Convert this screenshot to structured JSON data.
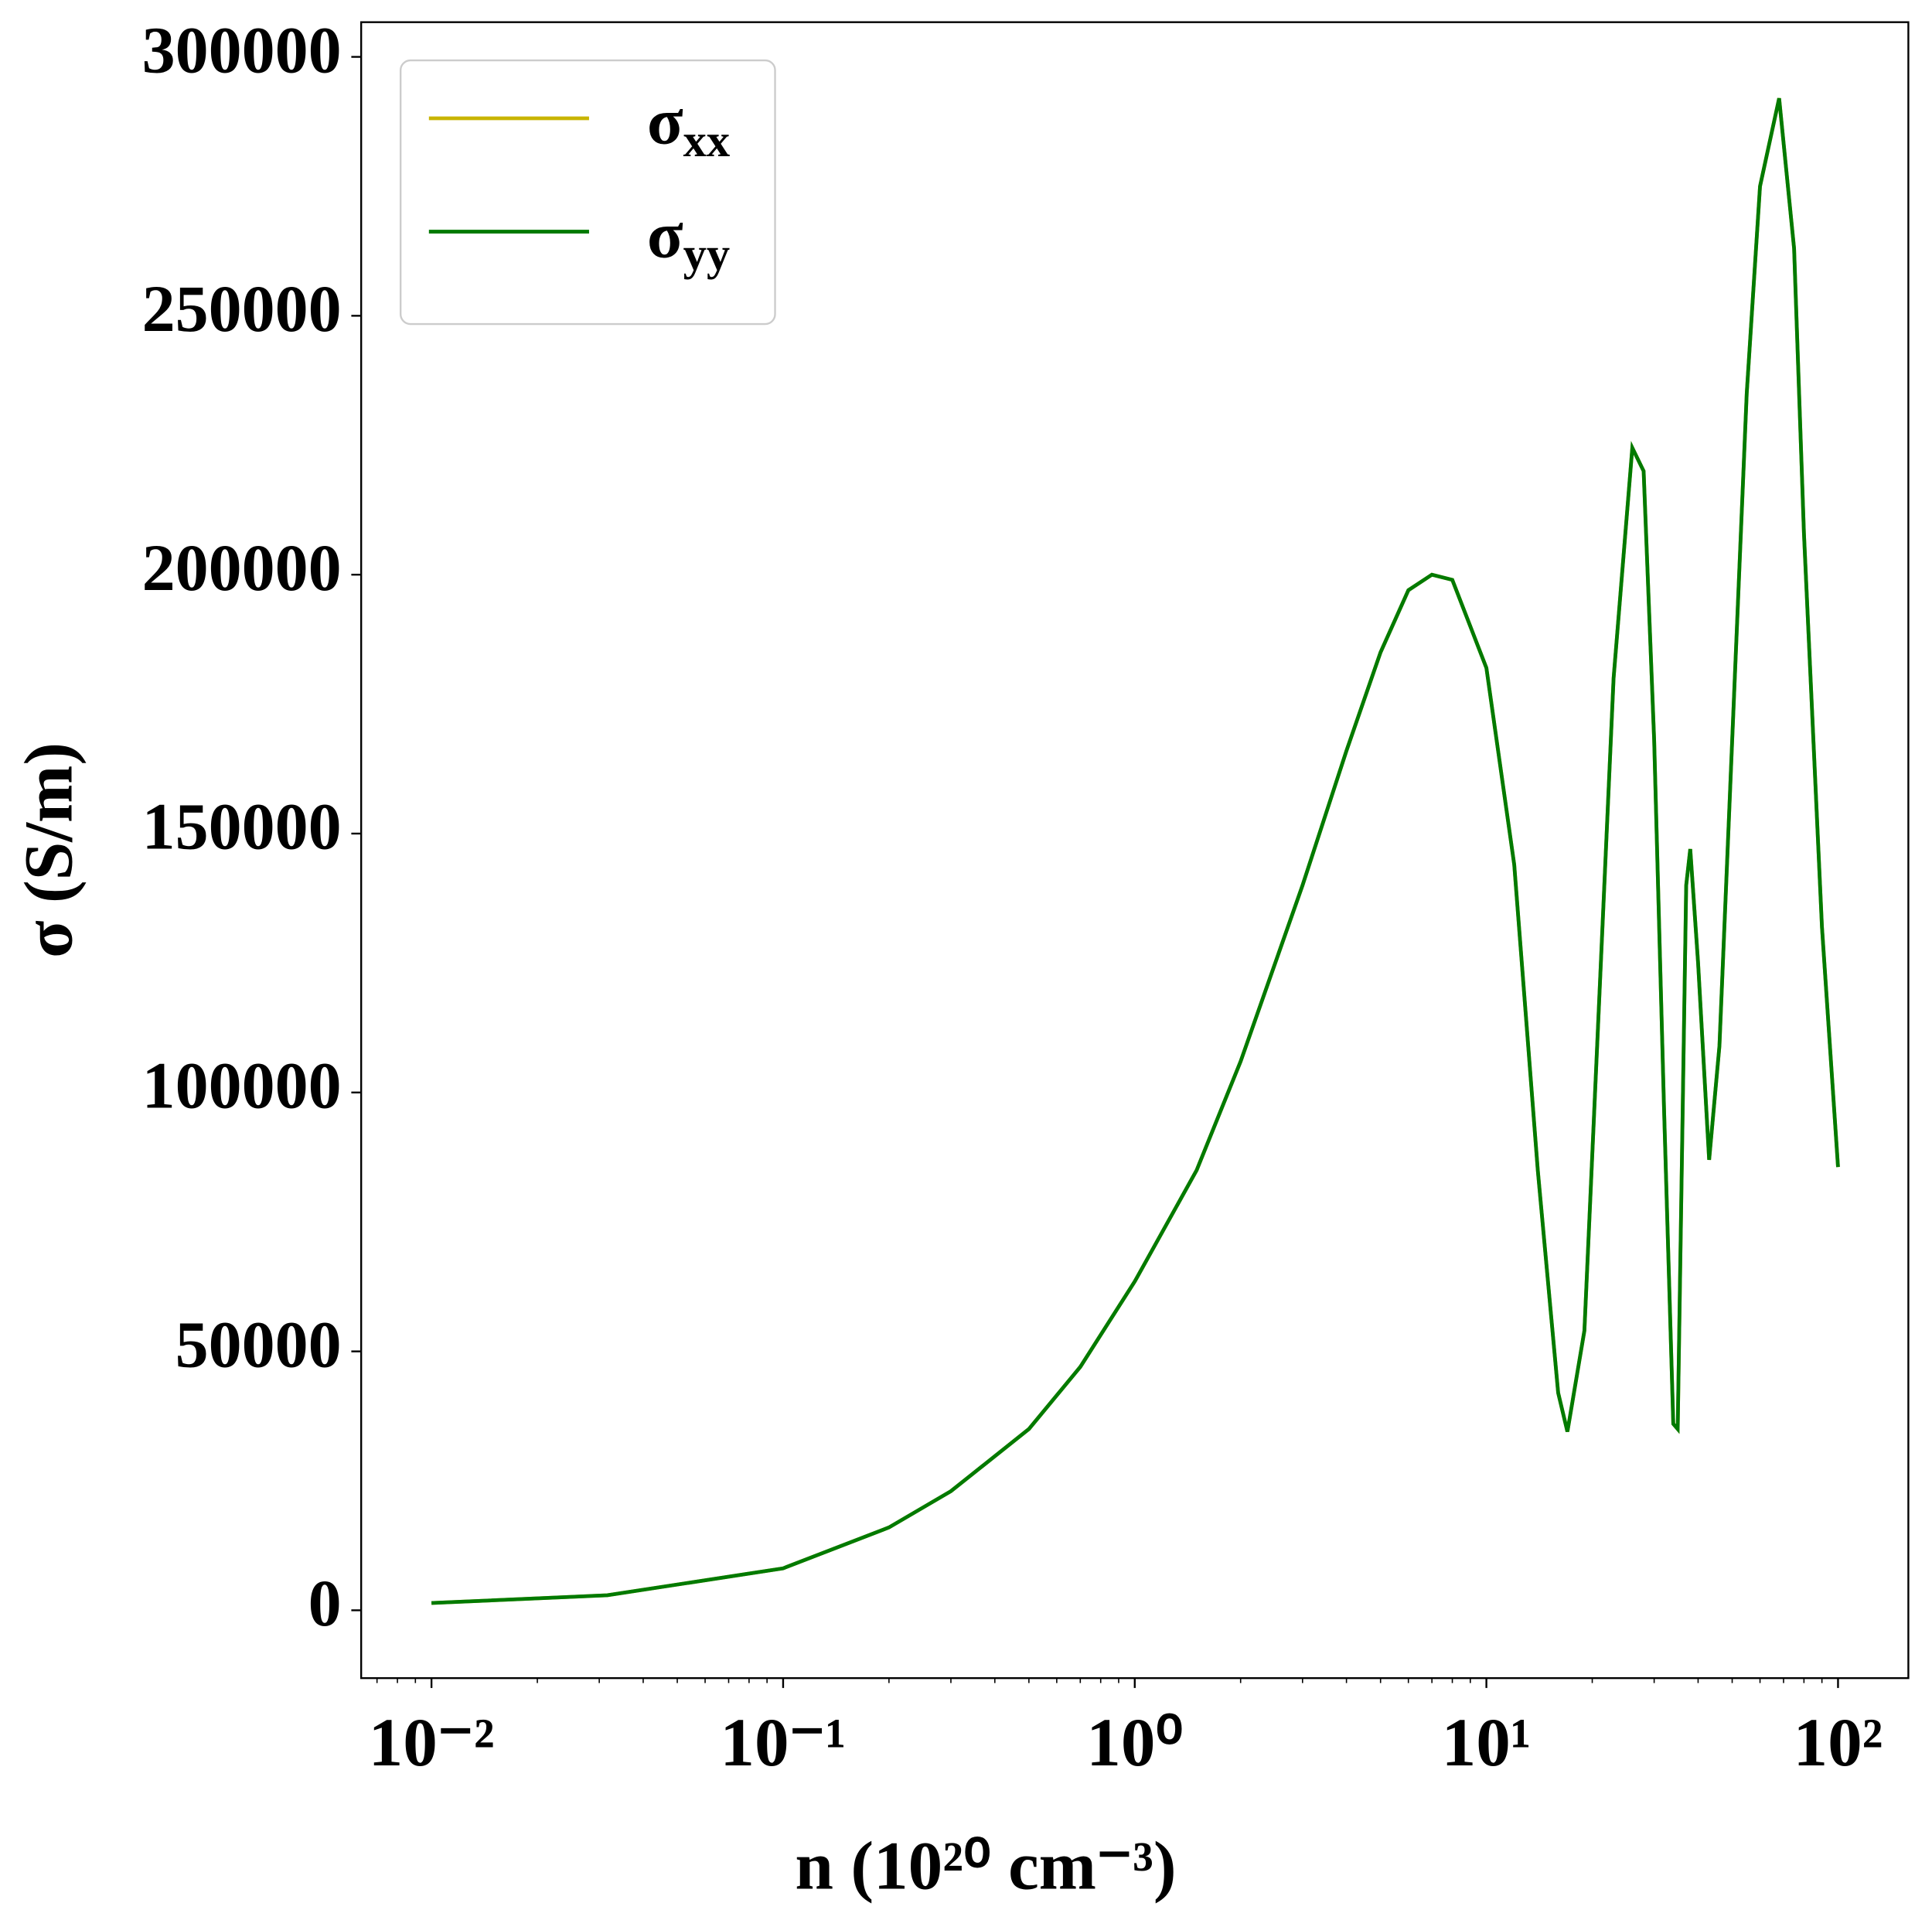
{
  "chart_data": {
    "type": "line",
    "xlabel": "n (10²⁰ cm⁻³)",
    "ylabel": "σ (S/m)",
    "xscale": "log",
    "xlim": [
      0.00631,
      158.49
    ],
    "ylim": [
      -13100,
      306700
    ],
    "xticks": [
      {
        "value": 0.01,
        "label": "10⁻²"
      },
      {
        "value": 0.1,
        "label": "10⁻¹"
      },
      {
        "value": 1,
        "label": "10⁰"
      },
      {
        "value": 10,
        "label": "10¹"
      },
      {
        "value": 100,
        "label": "10²"
      }
    ],
    "yticks": [
      0,
      50000,
      100000,
      150000,
      200000,
      250000,
      300000
    ],
    "grid": false,
    "legend": "upper left",
    "x": [
      0.01,
      0.0316,
      0.1,
      0.2,
      0.3,
      0.5,
      0.7,
      1,
      1.5,
      2,
      3,
      4,
      5,
      6,
      7,
      8,
      10,
      12,
      14,
      16,
      17,
      19,
      21,
      23,
      26,
      28,
      30,
      32,
      34,
      35,
      37,
      38,
      40,
      43,
      46,
      50,
      55,
      60,
      68,
      75,
      80,
      90,
      100
    ],
    "series": [
      {
        "name": "σxx",
        "color": "#c8b400",
        "values": [
          1400,
          2900,
          8100,
          16000,
          23000,
          35000,
          47000,
          63500,
          85000,
          106000,
          140000,
          166000,
          185000,
          197000,
          200000,
          199000,
          182000,
          144000,
          85000,
          42000,
          34500,
          54000,
          120000,
          180000,
          224500,
          220000,
          168000,
          97000,
          36000,
          35000,
          140000,
          147000,
          125000,
          87000,
          109000,
          168000,
          235000,
          275000,
          292000,
          263000,
          208000,
          132000,
          85600
        ]
      },
      {
        "name": "σyy",
        "color": "#007a00",
        "values": [
          1400,
          2900,
          8100,
          16000,
          23000,
          35000,
          47000,
          63500,
          85000,
          106000,
          140000,
          166000,
          185000,
          197000,
          200000,
          199000,
          182000,
          144000,
          85000,
          42000,
          34500,
          54000,
          120000,
          180000,
          224500,
          220000,
          168000,
          97000,
          36000,
          35000,
          140000,
          147000,
          125000,
          87000,
          109000,
          168000,
          235000,
          275000,
          292000,
          263000,
          208000,
          132000,
          85600
        ]
      }
    ]
  }
}
